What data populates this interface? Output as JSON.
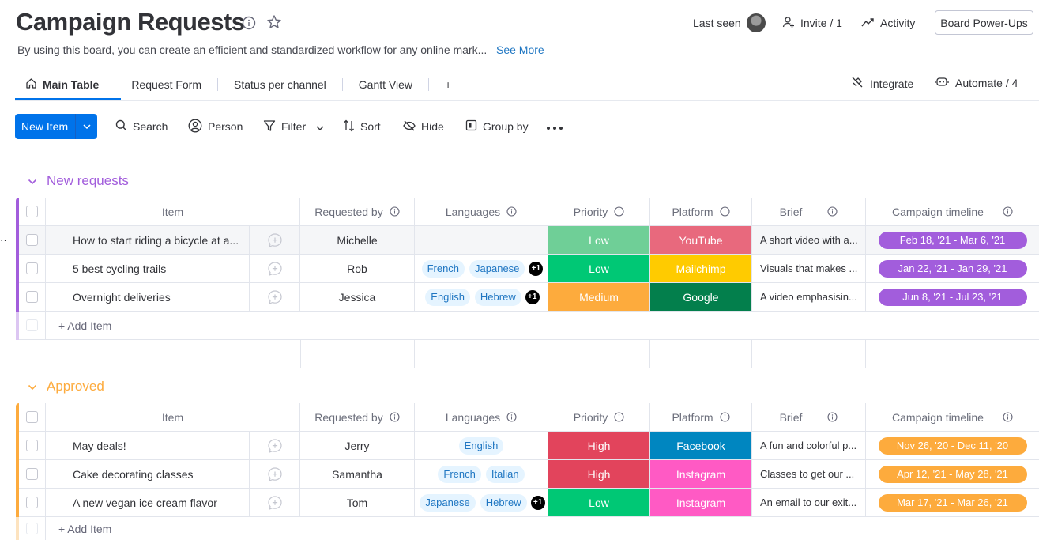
{
  "board": {
    "title": "Campaign Requests",
    "description": "By using this board, you can create an efficient and standardized workflow for any online mark...",
    "see_more": "See More"
  },
  "header": {
    "last_seen": "Last seen",
    "invite": "Invite / 1",
    "activity": "Activity",
    "power_ups": "Board Power-Ups"
  },
  "tabs": {
    "main_table": "Main Table",
    "request_form": "Request Form",
    "status_per_channel": "Status per channel",
    "gantt_view": "Gantt View",
    "add": "+",
    "integrate": "Integrate",
    "automate": "Automate / 4"
  },
  "toolbar": {
    "new_item": "New Item",
    "search": "Search",
    "person": "Person",
    "filter": "Filter",
    "sort": "Sort",
    "hide": "Hide",
    "group_by": "Group by"
  },
  "columns": {
    "item": "Item",
    "requested_by": "Requested by",
    "languages": "Languages",
    "priority": "Priority",
    "platform": "Platform",
    "brief": "Brief",
    "timeline": "Campaign timeline"
  },
  "colors": {
    "new_requests": "#a25ddc",
    "approved": "#fdab3d",
    "low_light": "#6fcf97",
    "low": "#00c875",
    "medium": "#fdab3d",
    "high": "#e2445c",
    "youtube": "#e8697d",
    "mailchimp": "#ffcb00",
    "google": "#037f4c",
    "facebook": "#0086c0",
    "instagram": "#ff5ac4"
  },
  "groups": [
    {
      "title": "New requests",
      "add_item": "+ Add Item",
      "rows": [
        {
          "item": "How to start riding a bicycle at a...",
          "requested_by": "Michelle",
          "languages": [],
          "more": "",
          "priority": "Low",
          "platform": "YouTube",
          "brief": "A short video with a...",
          "timeline": "Feb 18, '21 - Mar 6, '21"
        },
        {
          "item": "5 best cycling trails",
          "requested_by": "Rob",
          "languages": [
            "French",
            "Japanese"
          ],
          "more": "+1",
          "priority": "Low",
          "platform": "Mailchimp",
          "brief": "Visuals that makes ...",
          "timeline": "Jan 22, '21 - Jan 29, '21"
        },
        {
          "item": "Overnight deliveries",
          "requested_by": "Jessica",
          "languages": [
            "English",
            "Hebrew"
          ],
          "more": "+1",
          "priority": "Medium",
          "platform": "Google",
          "brief": "A video emphasisin...",
          "timeline": "Jun 8, '21 - Jul 23, '21"
        }
      ]
    },
    {
      "title": "Approved",
      "add_item": "+ Add Item",
      "rows": [
        {
          "item": "May deals!",
          "requested_by": "Jerry",
          "languages": [
            "English"
          ],
          "more": "",
          "priority": "High",
          "platform": "Facebook",
          "brief": "A fun and colorful p...",
          "timeline": "Nov 26, '20 - Dec 11, '20"
        },
        {
          "item": "Cake decorating classes",
          "requested_by": "Samantha",
          "languages": [
            "French",
            "Italian"
          ],
          "more": "",
          "priority": "High",
          "platform": "Instagram",
          "brief": "Classes to get our ...",
          "timeline": "Apr 12, '21 - May 28, '21"
        },
        {
          "item": "A new vegan ice cream flavor",
          "requested_by": "Tom",
          "languages": [
            "Japanese",
            "Hebrew"
          ],
          "more": "+1",
          "priority": "Low",
          "platform": "Instagram",
          "brief": "An email to our exit...",
          "timeline": "Mar 17, '21 - Mar 26, '21"
        }
      ]
    }
  ]
}
